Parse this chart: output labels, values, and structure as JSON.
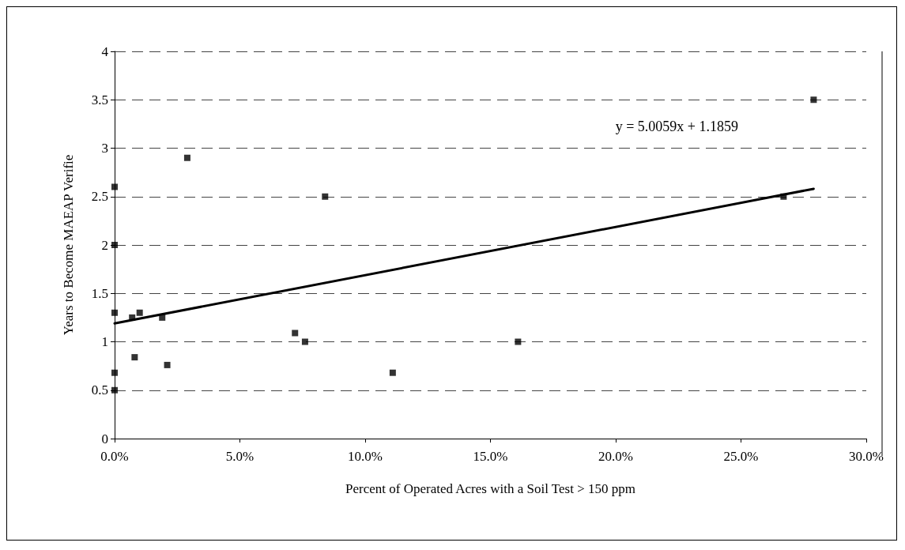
{
  "chart_data": {
    "type": "scatter",
    "xlabel": "Percent of Operated Acres with a Soil Test > 150 ppm",
    "ylabel": "Years to Become MAEAP Verifie",
    "annotations": [
      "y = 5.0059x + 1.1859"
    ],
    "xlim": [
      0,
      30
    ],
    "xticks": [
      {
        "value": 0,
        "label": "0.0%"
      },
      {
        "value": 5,
        "label": "5.0%"
      },
      {
        "value": 10,
        "label": "10.0%"
      },
      {
        "value": 15,
        "label": "15.0%"
      },
      {
        "value": 20,
        "label": "20.0%"
      },
      {
        "value": 25,
        "label": "25.0%"
      },
      {
        "value": 30,
        "label": "30.0%"
      }
    ],
    "ylim": [
      0,
      4
    ],
    "yticks": [
      0,
      0.5,
      1,
      1.5,
      2,
      2.5,
      3,
      3.5,
      4
    ],
    "grid": "y",
    "marker": "square",
    "series": [
      {
        "color": "#000000",
        "x": [
          0,
          0,
          0,
          0,
          0,
          0.7,
          1.0,
          1.9,
          0.8,
          2.1,
          2.9,
          7.2,
          7.6,
          8.4,
          11.1,
          16.1,
          26.7,
          27.9
        ],
        "values": [
          2.6,
          2.0,
          1.3,
          0.68,
          0.5,
          1.25,
          1.3,
          1.25,
          0.84,
          0.76,
          2.9,
          1.09,
          1.0,
          2.5,
          0.68,
          1.0,
          2.5,
          3.5
        ]
      },
      {
        "type": "line",
        "color": "#000000",
        "marker": "none",
        "line_style": "solid",
        "x": [
          0,
          27.9
        ],
        "values": [
          1.19,
          2.58
        ]
      }
    ]
  }
}
